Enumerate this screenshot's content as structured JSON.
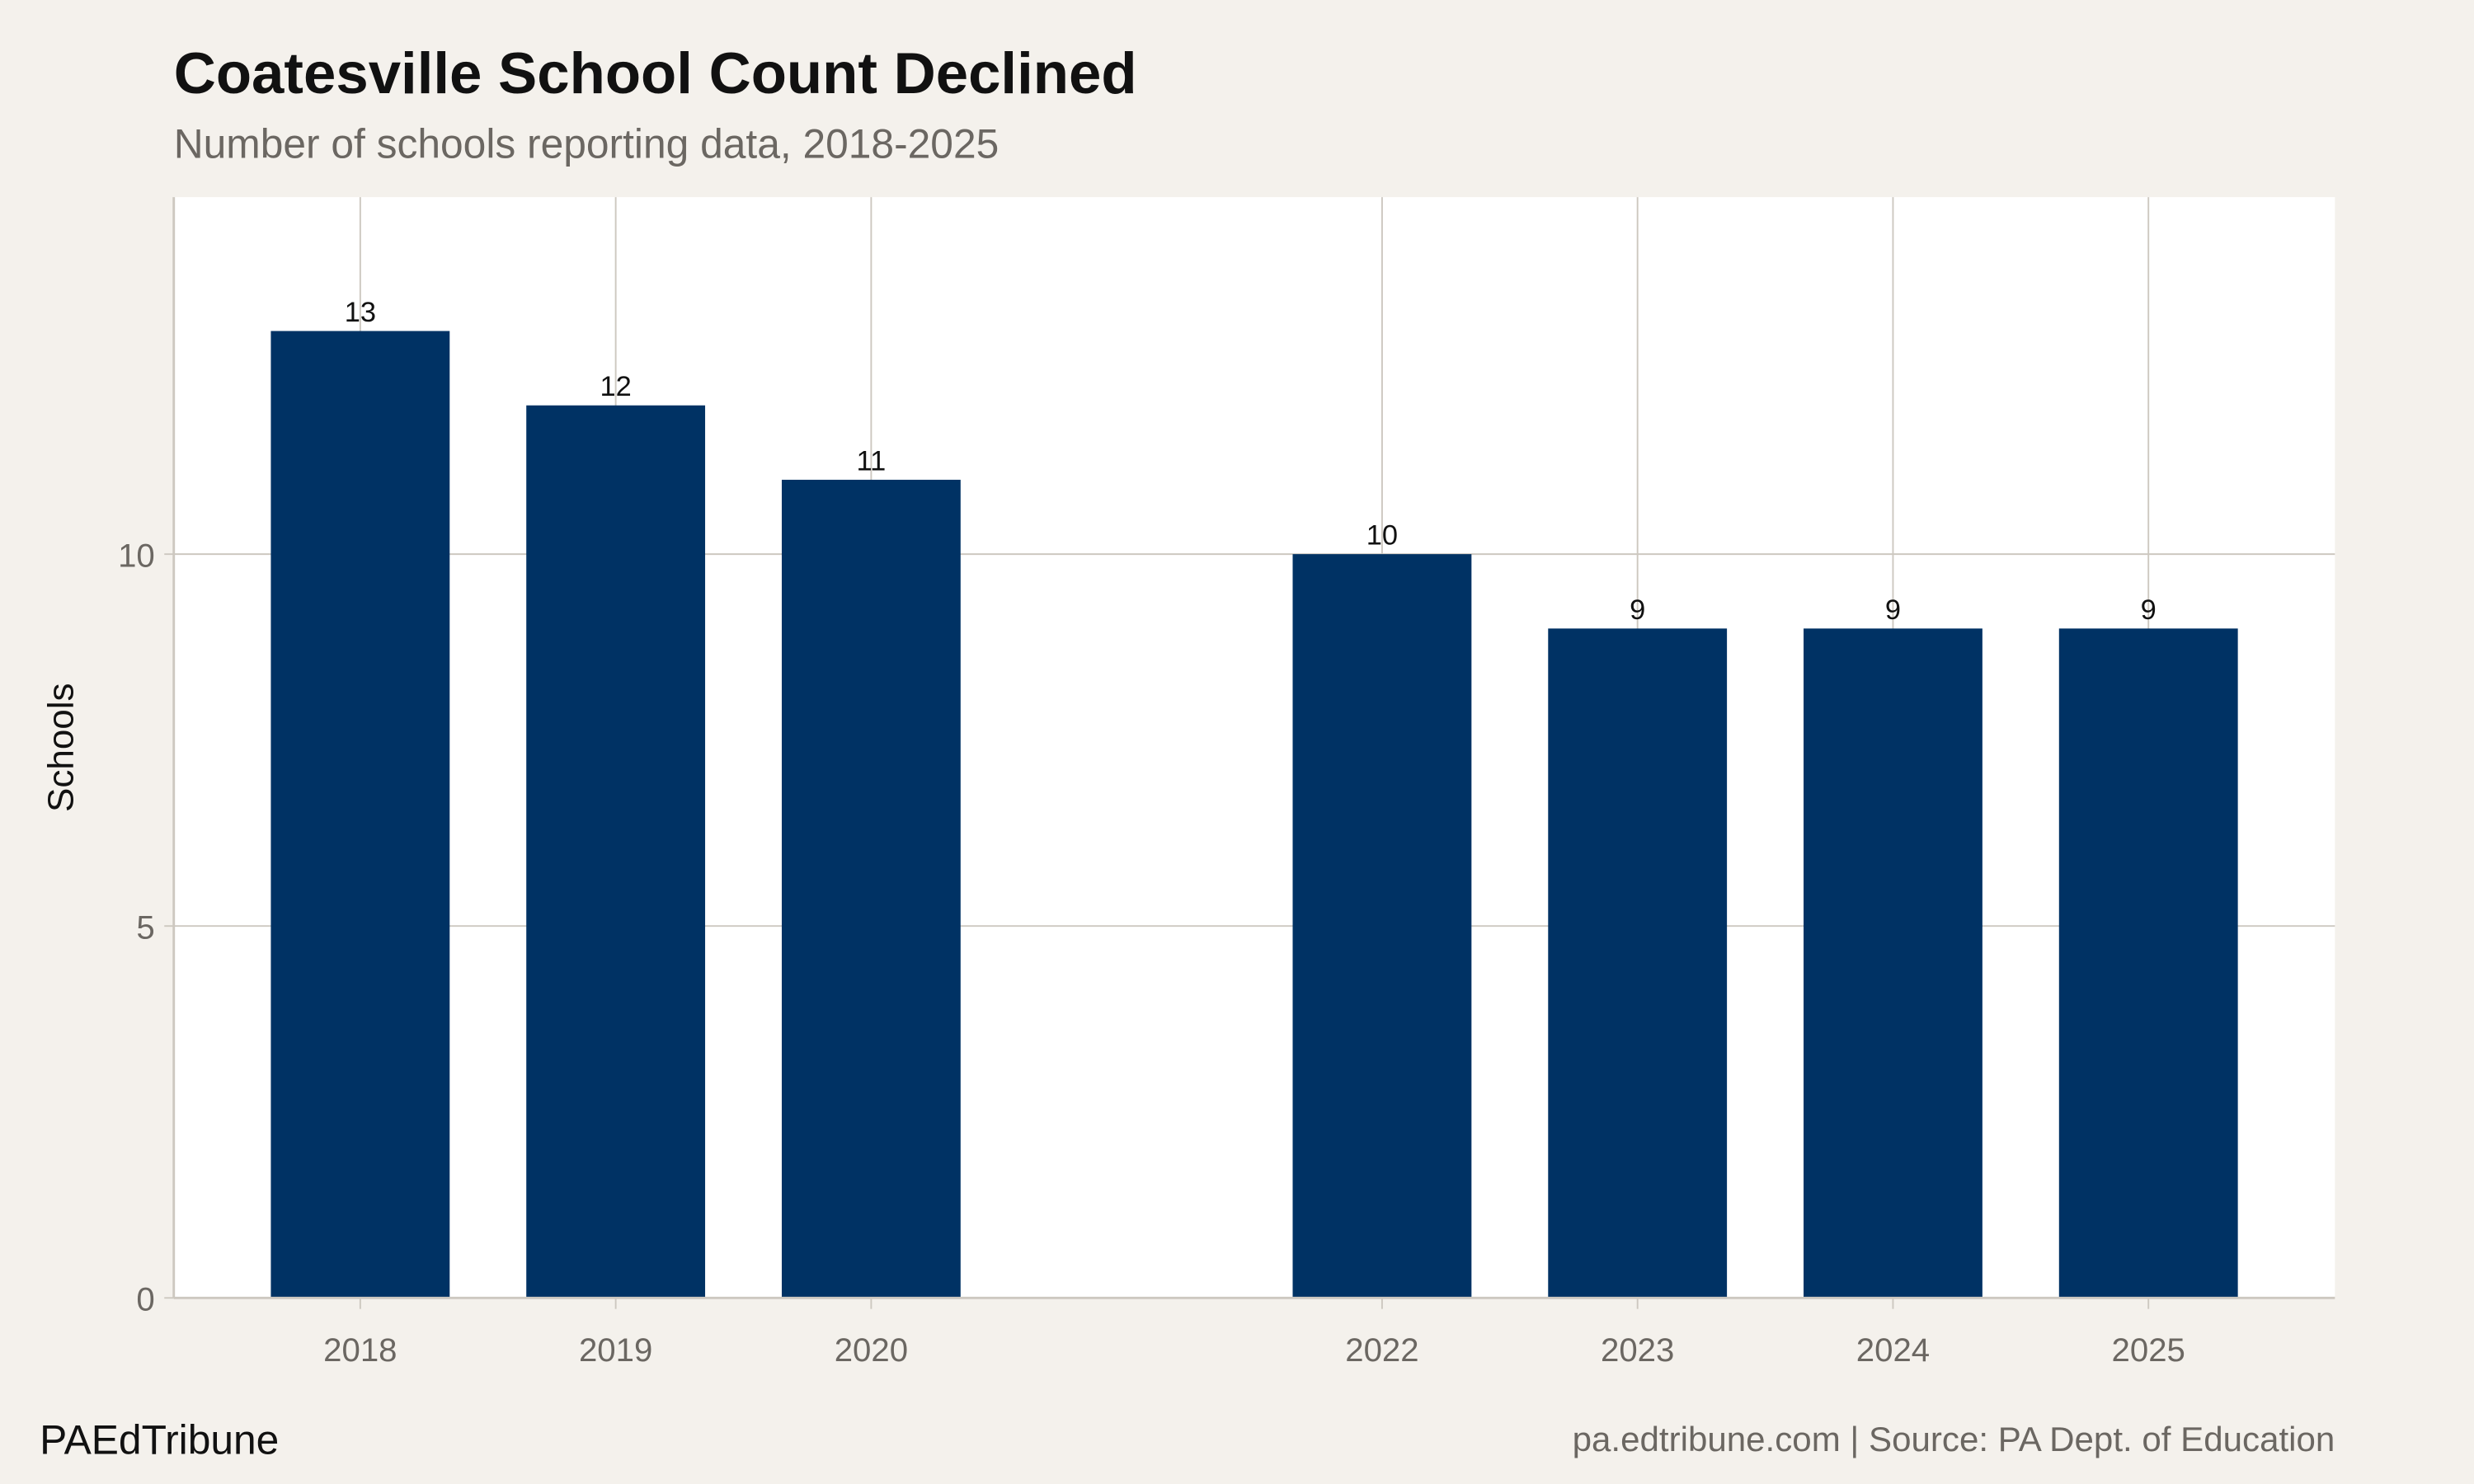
{
  "chart_data": {
    "type": "bar",
    "title": "Coatesville School Count Declined",
    "subtitle": "Number of schools reporting data, 2018-2025",
    "xlabel": "",
    "ylabel": "Schools",
    "categories": [
      2018,
      2019,
      2020,
      2022,
      2023,
      2024,
      2025
    ],
    "values": [
      13,
      12,
      11,
      10,
      9,
      9,
      9
    ],
    "data_labels": [
      "13",
      "12",
      "11",
      "10",
      "9",
      "9",
      "9"
    ],
    "x_ticks": [
      "2018",
      "2019",
      "2020",
      "2022",
      "2023",
      "2024",
      "2025"
    ],
    "y_ticks": [
      "0",
      "5",
      "10"
    ],
    "y_tick_values": [
      0,
      5,
      10
    ],
    "ylim": [
      0,
      14.8
    ],
    "xlim": [
      2017.27,
      2025.73
    ],
    "grid": true,
    "legend": "none",
    "colors": {
      "bar": "#003264",
      "background": "#f4f1ec",
      "panel": "#ffffff",
      "grid": "#cdc8c0"
    }
  },
  "footer": {
    "brand": "PAEdTribune",
    "source": "pa.edtribune.com | Source: PA Dept. of Education"
  }
}
